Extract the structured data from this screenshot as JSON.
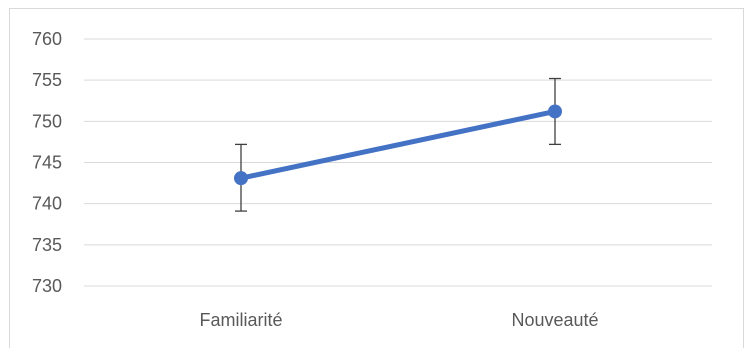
{
  "chart_data": {
    "type": "line",
    "categories": [
      "Familiarité",
      "Nouveauté"
    ],
    "series": [
      {
        "values": [
          743.1,
          751.2
        ],
        "error_plus": [
          4.1,
          4.0
        ],
        "error_minus": [
          4.0,
          4.0
        ]
      }
    ],
    "yticks": [
      "760",
      "755",
      "750",
      "745",
      "740",
      "735",
      "730"
    ],
    "ylim": [
      730,
      760
    ],
    "ystep": 5,
    "grid": true,
    "title": "",
    "xlabel": "",
    "ylabel": "",
    "colors": {
      "line": "#4472C4",
      "grid": "#d9d9d9",
      "error_bar": "#404040",
      "text": "#595959"
    }
  }
}
